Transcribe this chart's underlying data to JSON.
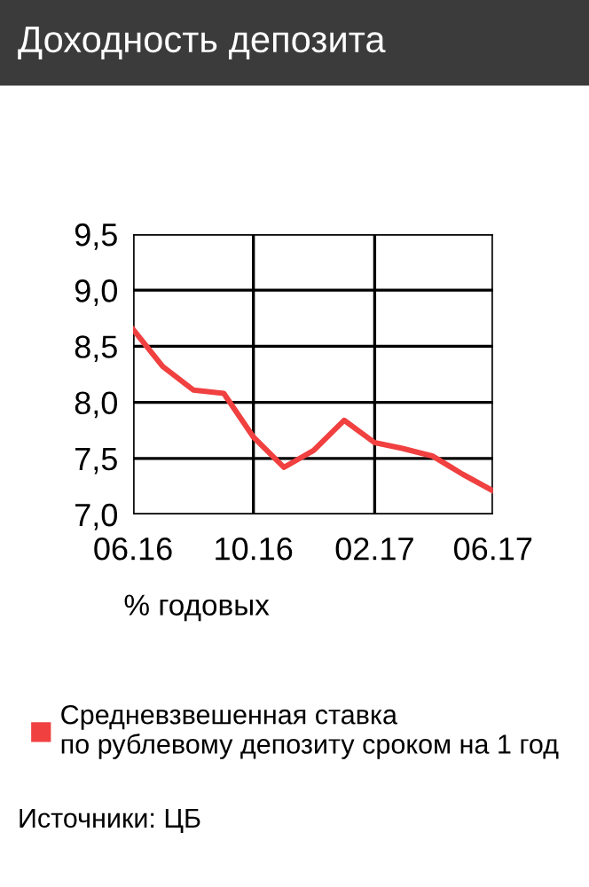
{
  "chart_data": {
    "type": "line",
    "title": "Доходность депозита",
    "x": [
      "2016-06",
      "2016-07",
      "2016-08",
      "2016-09",
      "2016-10",
      "2016-11",
      "2016-12",
      "2017-01",
      "2017-02",
      "2017-03",
      "2017-04",
      "2017-05",
      "2017-06"
    ],
    "series": [
      {
        "name": "Средневзвешенная ставка\nпо рублевому депозиту сроком на 1 год",
        "color": "#f04040",
        "values": [
          8.65,
          8.32,
          8.11,
          8.08,
          7.69,
          7.42,
          7.57,
          7.84,
          7.64,
          7.59,
          7.52,
          7.36,
          7.21
        ]
      }
    ],
    "xlim": [
      "2016-06",
      "2017-06"
    ],
    "xticks": [
      {
        "value": "2016-06",
        "label": "06.16"
      },
      {
        "value": "2016-10",
        "label": "10.16"
      },
      {
        "value": "2017-02",
        "label": "02.17"
      },
      {
        "value": "2017-06",
        "label": "06.17"
      }
    ],
    "ylim": [
      7.0,
      9.5
    ],
    "yticks": [
      {
        "value": 7.0,
        "label": "7,0"
      },
      {
        "value": 7.5,
        "label": "7,5"
      },
      {
        "value": 8.0,
        "label": "8,0"
      },
      {
        "value": 8.5,
        "label": "8,5"
      },
      {
        "value": 9.0,
        "label": "9,0"
      },
      {
        "value": 9.5,
        "label": "9,5"
      }
    ],
    "grid": true,
    "legend": "bottom",
    "marker": "none",
    "line_style": "solid",
    "annotations": [
      "% годовых",
      "Источники: ЦБ"
    ]
  }
}
